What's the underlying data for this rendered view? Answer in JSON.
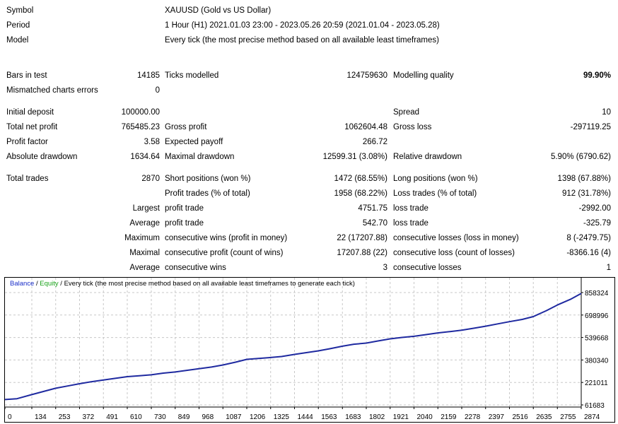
{
  "header": {
    "symbol_label": "Symbol",
    "symbol_value": "XAUUSD (Gold vs US Dollar)",
    "period_label": "Period",
    "period_value": "1 Hour (H1) 2021.01.03 23:00 - 2023.05.26 20:59 (2021.01.04 - 2023.05.28)",
    "model_label": "Model",
    "model_value": "Every tick (the most precise method based on all available least timeframes)"
  },
  "stats": {
    "bars_label": "Bars in test",
    "bars_value": "14185",
    "ticks_label": "Ticks modelled",
    "ticks_value": "124759630",
    "quality_label": "Modelling quality",
    "quality_value": "99.90%",
    "mismatch_label": "Mismatched charts errors",
    "mismatch_value": "0",
    "deposit_label": "Initial deposit",
    "deposit_value": "100000.00",
    "spread_label": "Spread",
    "spread_value": "10",
    "netprofit_label": "Total net profit",
    "netprofit_value": "765485.23",
    "grossprofit_label": "Gross profit",
    "grossprofit_value": "1062604.48",
    "grossloss_label": "Gross loss",
    "grossloss_value": "-297119.25",
    "pf_label": "Profit factor",
    "pf_value": "3.58",
    "payoff_label": "Expected payoff",
    "payoff_value": "266.72",
    "absdd_label": "Absolute drawdown",
    "absdd_value": "1634.64",
    "maxdd_label": "Maximal drawdown",
    "maxdd_value": "12599.31 (3.08%)",
    "reldd_label": "Relative drawdown",
    "reldd_value": "5.90% (6790.62)",
    "trades_label": "Total trades",
    "trades_value": "2870",
    "short_label": "Short positions (won %)",
    "short_value": "1472 (68.55%)",
    "long_label": "Long positions (won %)",
    "long_value": "1398 (67.88%)",
    "ptrades_label": "Profit trades (% of total)",
    "ptrades_value": "1958 (68.22%)",
    "ltrades_label": "Loss trades (% of total)",
    "ltrades_value": "912 (31.78%)",
    "largest_label": "Largest",
    "largest_profit_label": "profit trade",
    "largest_profit_value": "4751.75",
    "largest_loss_label": "loss trade",
    "largest_loss_value": "-2992.00",
    "average_label": "Average",
    "average_profit_label": "profit trade",
    "average_profit_value": "542.70",
    "average_loss_label": "loss trade",
    "average_loss_value": "-325.79",
    "maximum_label": "Maximum",
    "max_wins_label": "consecutive wins (profit in money)",
    "max_wins_value": "22 (17207.88)",
    "max_losses_label": "consecutive losses (loss in money)",
    "max_losses_value": "8 (-2479.75)",
    "maximal_label": "Maximal",
    "maximal_profit_label": "consecutive profit (count of wins)",
    "maximal_profit_value": "17207.88 (22)",
    "maximal_loss_label": "consecutive loss (count of losses)",
    "maximal_loss_value": "-8366.16 (4)",
    "avg2_label": "Average",
    "avg_wins_label": "consecutive wins",
    "avg_wins_value": "3",
    "avg_losses_label": "consecutive losses",
    "avg_losses_value": "1"
  },
  "chart_caption": {
    "balance": "Balance",
    "sep1": " / ",
    "equity": "Equity",
    "rest": " / Every tick (the most precise method based on all available least timeframes to generate each tick)"
  },
  "chart_data": {
    "type": "line",
    "colors": {
      "line": "#1f2aa0",
      "grid": "#c8c8c8",
      "background": "#ffffff"
    },
    "x_ticks": [
      "0",
      "134",
      "253",
      "372",
      "491",
      "610",
      "730",
      "849",
      "968",
      "1087",
      "1206",
      "1325",
      "1444",
      "1563",
      "1683",
      "1802",
      "1921",
      "2040",
      "2159",
      "2278",
      "2397",
      "2516",
      "2635",
      "2755",
      "2874"
    ],
    "y_ticks": [
      "858324",
      "698996",
      "539668",
      "380340",
      "221011",
      "61683"
    ],
    "xlim": [
      0,
      2874
    ],
    "ylim": [
      61683,
      858324
    ],
    "series": [
      {
        "x": [
          0,
          60,
          134,
          200,
          253,
          320,
          372,
          430,
          491,
          550,
          610,
          670,
          730,
          790,
          849,
          900,
          968,
          1030,
          1087,
          1150,
          1206,
          1270,
          1325,
          1380,
          1444,
          1500,
          1563,
          1620,
          1683,
          1740,
          1802,
          1860,
          1921,
          1980,
          2040,
          2100,
          2159,
          2220,
          2278,
          2340,
          2397,
          2460,
          2516,
          2580,
          2635,
          2700,
          2755,
          2820,
          2874
        ],
        "y": [
          100000,
          106000,
          135000,
          160000,
          180000,
          198000,
          212000,
          226000,
          238000,
          250000,
          262000,
          268000,
          275000,
          287000,
          295000,
          305000,
          318000,
          330000,
          345000,
          365000,
          385000,
          392000,
          398000,
          405000,
          420000,
          432000,
          445000,
          460000,
          478000,
          492000,
          500000,
          515000,
          530000,
          540000,
          548000,
          560000,
          572000,
          582000,
          592000,
          606000,
          620000,
          637000,
          652000,
          668000,
          688000,
          730000,
          770000,
          810000,
          852000
        ]
      }
    ]
  }
}
